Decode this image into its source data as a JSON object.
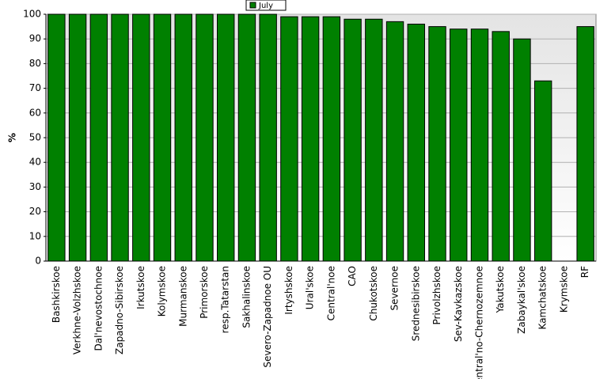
{
  "chart_data": {
    "type": "bar",
    "legend_label": "July",
    "y_label": "%",
    "categories": [
      "Bashkirskoe",
      "Verkhne-Volzhskoe",
      "Dal'nevostochnoe",
      "Zapadno-Sibirskoe",
      "Irkutskoe",
      "Kolymskoe",
      "Murmanskoe",
      "Primorskoe",
      "resp.Tatarstan",
      "Sakhalinskoe",
      "Severo-Zapadnoe OU",
      "Irtyshskoe",
      "Ural'skoe",
      "Central'noe",
      "CAO",
      "Chukotskoe",
      "Severnoe",
      "Srednesibirskoe",
      "Privolzhskoe",
      "Sev-Kavkazskoe",
      "Central'no-Chernozemnoe",
      "Yakutskoe",
      "Zabaykal'skoe",
      "Kamchatskoe",
      "Krymskoe",
      "RF"
    ],
    "values": [
      100,
      100,
      100,
      100,
      100,
      100,
      100,
      100,
      100,
      100,
      100,
      99,
      99,
      99,
      98,
      98,
      97,
      96,
      95,
      94,
      94,
      93,
      90,
      73,
      null,
      95
    ],
    "color": "#008000",
    "ylim": [
      0,
      100
    ],
    "yticks": [
      0,
      10,
      20,
      30,
      40,
      50,
      60,
      70,
      80,
      90,
      100
    ],
    "grid": true
  }
}
